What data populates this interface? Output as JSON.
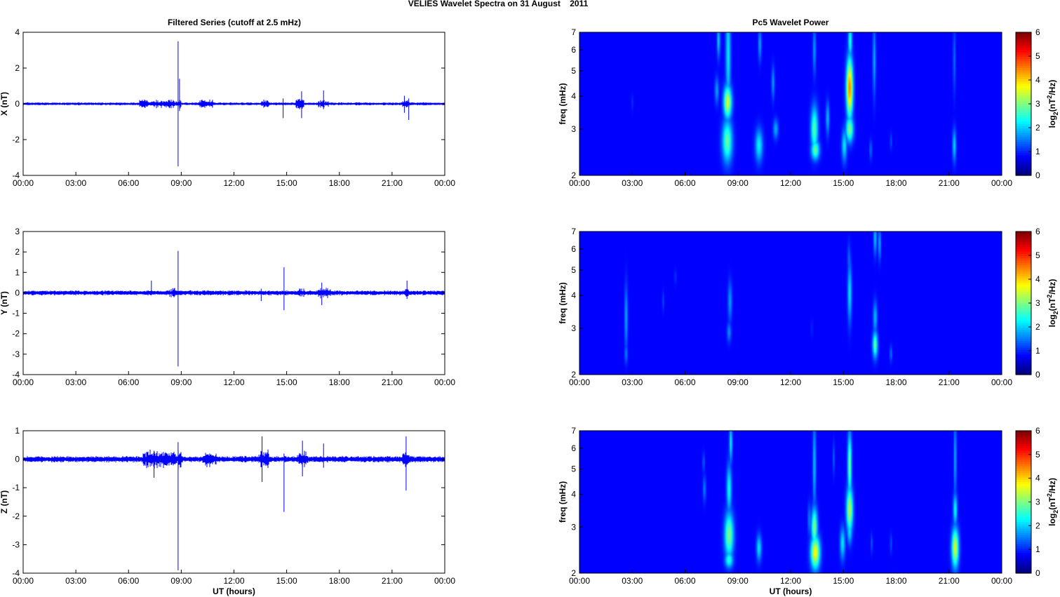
{
  "figure": {
    "title": "VELIES Wavelet Spectra on 31 August    2011",
    "left_title": "Filtered Series (cutoff at 2.5 mHz)",
    "right_title": "Pc5 Wavelet Power",
    "xlabel": "UT (hours)",
    "freq_label": "freq (mHz)",
    "colorbar_label": "log2(nT2/Hz)",
    "x_ticks": [
      "00:00",
      "03:00",
      "06:00",
      "09:00",
      "12:00",
      "15:00",
      "18:00",
      "21:00",
      "00:00"
    ]
  },
  "chart_data": [
    {
      "type": "line",
      "component": "X",
      "ylabel": "X (nT)",
      "xlabel": "",
      "xlim": [
        0,
        24
      ],
      "ylim": [
        -4,
        4
      ],
      "yticks": [
        4,
        2,
        0,
        -2,
        -4
      ],
      "noise_amplitude": 0.09,
      "series_color": "#0000ff",
      "spikes": [
        {
          "t": 8.82,
          "min": -3.5,
          "max": 3.5
        },
        {
          "t": 8.9,
          "min": -0.4,
          "max": 1.4
        },
        {
          "t": 15.85,
          "min": -0.8,
          "max": 0.7
        },
        {
          "t": 14.8,
          "min": -0.8,
          "max": 0.3
        },
        {
          "t": 17.1,
          "min": -0.3,
          "max": 0.75
        },
        {
          "t": 21.95,
          "min": -0.9,
          "max": 0.3
        },
        {
          "t": 21.7,
          "min": -0.5,
          "max": 0.45
        }
      ],
      "bursts": [
        {
          "t0": 6.6,
          "t1": 9.0,
          "amp": 0.35
        },
        {
          "t0": 10.0,
          "t1": 10.8,
          "amp": 0.3
        },
        {
          "t0": 13.5,
          "t1": 14.0,
          "amp": 0.3
        },
        {
          "t0": 15.5,
          "t1": 16.0,
          "amp": 0.4
        },
        {
          "t0": 16.8,
          "t1": 17.4,
          "amp": 0.3
        },
        {
          "t0": 21.6,
          "t1": 22.0,
          "amp": 0.3
        }
      ]
    },
    {
      "type": "line",
      "component": "Y",
      "ylabel": "Y (nT)",
      "xlabel": "",
      "xlim": [
        0,
        24
      ],
      "ylim": [
        -4,
        3
      ],
      "yticks": [
        3,
        2,
        1,
        0,
        -1,
        -2,
        -3,
        -4
      ],
      "noise_amplitude": 0.13,
      "series_color": "#0000ff",
      "spikes": [
        {
          "t": 8.82,
          "min": -3.6,
          "max": 2.05
        },
        {
          "t": 14.85,
          "min": -0.85,
          "max": 1.25
        },
        {
          "t": 7.3,
          "min": -0.1,
          "max": 0.6
        },
        {
          "t": 13.55,
          "min": -0.4,
          "max": 0.2
        },
        {
          "t": 17.0,
          "min": -0.6,
          "max": 0.5
        },
        {
          "t": 21.85,
          "min": -0.3,
          "max": 0.6
        }
      ],
      "bursts": [
        {
          "t0": 8.3,
          "t1": 9.0,
          "amp": 0.25
        },
        {
          "t0": 15.6,
          "t1": 16.0,
          "amp": 0.3
        },
        {
          "t0": 16.8,
          "t1": 17.5,
          "amp": 0.35
        },
        {
          "t0": 21.7,
          "t1": 22.0,
          "amp": 0.3
        }
      ]
    },
    {
      "type": "line",
      "component": "Z",
      "ylabel": "Z (nT)",
      "xlabel": "UT (hours)",
      "xlim": [
        0,
        24
      ],
      "ylim": [
        -4,
        1
      ],
      "yticks": [
        1,
        0,
        -1,
        -2,
        -3,
        -4
      ],
      "noise_amplitude": 0.12,
      "series_color": "#0000ff",
      "spikes": [
        {
          "t": 8.82,
          "min": -3.9,
          "max": 0.6
        },
        {
          "t": 14.85,
          "min": -1.85,
          "max": 0.2
        },
        {
          "t": 13.6,
          "min": -0.8,
          "max": 0.8
        },
        {
          "t": 15.9,
          "min": -0.6,
          "max": 0.65
        },
        {
          "t": 17.1,
          "min": -0.3,
          "max": 0.55
        },
        {
          "t": 21.8,
          "min": -1.1,
          "max": 0.8
        },
        {
          "t": 7.45,
          "min": -0.65,
          "max": 0.3
        }
      ],
      "bursts": [
        {
          "t0": 6.8,
          "t1": 9.0,
          "amp": 0.4
        },
        {
          "t0": 10.2,
          "t1": 11.0,
          "amp": 0.35
        },
        {
          "t0": 13.4,
          "t1": 14.0,
          "amp": 0.45
        },
        {
          "t0": 15.6,
          "t1": 16.2,
          "amp": 0.4
        },
        {
          "t0": 21.6,
          "t1": 22.0,
          "amp": 0.35
        }
      ]
    },
    {
      "type": "heatmap",
      "component": "X",
      "title": "Pc5 Wavelet Power",
      "xlim": [
        0,
        24
      ],
      "ylim": [
        2,
        7
      ],
      "ylog": true,
      "yticks": [
        7,
        6,
        5,
        4,
        3,
        2
      ],
      "colorbar_ticks": [
        6,
        5,
        4,
        3,
        2,
        1,
        0
      ],
      "clim": [
        0,
        6
      ],
      "colormap": "jet",
      "blobs": [
        {
          "t": 8.4,
          "f": 2.7,
          "dt": 0.2,
          "dlogf": 0.13,
          "v": 2.4
        },
        {
          "t": 8.42,
          "f": 3.8,
          "dt": 0.16,
          "dlogf": 0.1,
          "v": 3.2
        },
        {
          "t": 8.45,
          "f": 5.8,
          "dt": 0.1,
          "dlogf": 0.35,
          "v": 1.6
        },
        {
          "t": 7.9,
          "f": 6.5,
          "dt": 0.06,
          "dlogf": 0.1,
          "v": 1.5
        },
        {
          "t": 7.8,
          "f": 4.2,
          "dt": 0.08,
          "dlogf": 0.08,
          "v": 1.1
        },
        {
          "t": 10.2,
          "f": 2.6,
          "dt": 0.15,
          "dlogf": 0.1,
          "v": 1.7
        },
        {
          "t": 10.25,
          "f": 6.3,
          "dt": 0.06,
          "dlogf": 0.1,
          "v": 1.2
        },
        {
          "t": 11.0,
          "f": 4.5,
          "dt": 0.06,
          "dlogf": 0.1,
          "v": 1.1
        },
        {
          "t": 11.15,
          "f": 3.0,
          "dt": 0.1,
          "dlogf": 0.06,
          "v": 1.2
        },
        {
          "t": 13.35,
          "f": 3.0,
          "dt": 0.14,
          "dlogf": 0.14,
          "v": 2.3
        },
        {
          "t": 13.4,
          "f": 2.5,
          "dt": 0.16,
          "dlogf": 0.06,
          "v": 2.4
        },
        {
          "t": 13.35,
          "f": 6.0,
          "dt": 0.06,
          "dlogf": 0.15,
          "v": 1.1
        },
        {
          "t": 14.1,
          "f": 3.3,
          "dt": 0.07,
          "dlogf": 0.1,
          "v": 1.3
        },
        {
          "t": 15.05,
          "f": 2.6,
          "dt": 0.1,
          "dlogf": 0.1,
          "v": 1.6
        },
        {
          "t": 15.35,
          "f": 4.3,
          "dt": 0.13,
          "dlogf": 0.18,
          "v": 4.3
        },
        {
          "t": 15.35,
          "f": 3.0,
          "dt": 0.15,
          "dlogf": 0.08,
          "v": 2.6
        },
        {
          "t": 15.38,
          "f": 6.5,
          "dt": 0.08,
          "dlogf": 0.1,
          "v": 2.0
        },
        {
          "t": 16.75,
          "f": 5.5,
          "dt": 0.06,
          "dlogf": 0.22,
          "v": 1.2
        },
        {
          "t": 16.55,
          "f": 2.5,
          "dt": 0.05,
          "dlogf": 0.06,
          "v": 0.8
        },
        {
          "t": 17.7,
          "f": 2.7,
          "dt": 0.04,
          "dlogf": 0.05,
          "v": 0.6
        },
        {
          "t": 21.3,
          "f": 2.6,
          "dt": 0.07,
          "dlogf": 0.1,
          "v": 1.5
        },
        {
          "t": 21.3,
          "f": 5.5,
          "dt": 0.05,
          "dlogf": 0.2,
          "v": 0.8
        },
        {
          "t": 3.0,
          "f": 3.8,
          "dt": 0.04,
          "dlogf": 0.05,
          "v": 0.3
        }
      ]
    },
    {
      "type": "heatmap",
      "component": "Y",
      "title": "",
      "xlim": [
        0,
        24
      ],
      "ylim": [
        2,
        7
      ],
      "ylog": true,
      "yticks": [
        7,
        6,
        5,
        4,
        3,
        2
      ],
      "colorbar_ticks": [
        6,
        5,
        4,
        3,
        2,
        1,
        0
      ],
      "clim": [
        0,
        6
      ],
      "colormap": "jet",
      "blobs": [
        {
          "t": 2.65,
          "f": 3.3,
          "dt": 0.06,
          "dlogf": 0.2,
          "v": 1.2
        },
        {
          "t": 2.65,
          "f": 2.4,
          "dt": 0.06,
          "dlogf": 0.06,
          "v": 0.9
        },
        {
          "t": 4.75,
          "f": 3.8,
          "dt": 0.04,
          "dlogf": 0.06,
          "v": 0.5
        },
        {
          "t": 5.45,
          "f": 4.7,
          "dt": 0.04,
          "dlogf": 0.05,
          "v": 0.4
        },
        {
          "t": 8.55,
          "f": 3.8,
          "dt": 0.08,
          "dlogf": 0.12,
          "v": 1.1
        },
        {
          "t": 8.5,
          "f": 2.9,
          "dt": 0.08,
          "dlogf": 0.06,
          "v": 1.0
        },
        {
          "t": 15.35,
          "f": 4.1,
          "dt": 0.08,
          "dlogf": 0.18,
          "v": 1.6
        },
        {
          "t": 15.3,
          "f": 5.5,
          "dt": 0.05,
          "dlogf": 0.1,
          "v": 0.8
        },
        {
          "t": 16.8,
          "f": 2.6,
          "dt": 0.1,
          "dlogf": 0.08,
          "v": 2.4
        },
        {
          "t": 16.8,
          "f": 3.3,
          "dt": 0.08,
          "dlogf": 0.1,
          "v": 1.3
        },
        {
          "t": 16.8,
          "f": 6.6,
          "dt": 0.06,
          "dlogf": 0.1,
          "v": 1.4
        },
        {
          "t": 17.05,
          "f": 6.3,
          "dt": 0.05,
          "dlogf": 0.1,
          "v": 1.3
        },
        {
          "t": 17.7,
          "f": 2.4,
          "dt": 0.05,
          "dlogf": 0.05,
          "v": 0.8
        },
        {
          "t": 13.2,
          "f": 3.0,
          "dt": 0.04,
          "dlogf": 0.05,
          "v": 0.3
        }
      ]
    },
    {
      "type": "heatmap",
      "component": "Z",
      "title": "",
      "xlabel": "UT (hours)",
      "xlim": [
        0,
        24
      ],
      "ylim": [
        2,
        7
      ],
      "ylog": true,
      "yticks": [
        7,
        6,
        5,
        4,
        3,
        2
      ],
      "colorbar_ticks": [
        6,
        5,
        4,
        3,
        2,
        1,
        0
      ],
      "clim": [
        0,
        6
      ],
      "colormap": "jet",
      "blobs": [
        {
          "t": 8.5,
          "f": 2.8,
          "dt": 0.18,
          "dlogf": 0.14,
          "v": 2.6
        },
        {
          "t": 8.5,
          "f": 2.25,
          "dt": 0.16,
          "dlogf": 0.05,
          "v": 2.0
        },
        {
          "t": 8.5,
          "f": 4.2,
          "dt": 0.1,
          "dlogf": 0.15,
          "v": 1.8
        },
        {
          "t": 8.6,
          "f": 6.3,
          "dt": 0.06,
          "dlogf": 0.12,
          "v": 1.7
        },
        {
          "t": 7.1,
          "f": 4.2,
          "dt": 0.06,
          "dlogf": 0.08,
          "v": 0.9
        },
        {
          "t": 7.05,
          "f": 5.3,
          "dt": 0.04,
          "dlogf": 0.06,
          "v": 0.8
        },
        {
          "t": 10.2,
          "f": 2.5,
          "dt": 0.1,
          "dlogf": 0.08,
          "v": 1.6
        },
        {
          "t": 13.4,
          "f": 2.4,
          "dt": 0.18,
          "dlogf": 0.1,
          "v": 3.5
        },
        {
          "t": 13.35,
          "f": 3.0,
          "dt": 0.12,
          "dlogf": 0.12,
          "v": 2.6
        },
        {
          "t": 13.35,
          "f": 5.2,
          "dt": 0.06,
          "dlogf": 0.28,
          "v": 1.4
        },
        {
          "t": 13.05,
          "f": 3.2,
          "dt": 0.05,
          "dlogf": 0.1,
          "v": 1.0
        },
        {
          "t": 14.95,
          "f": 2.6,
          "dt": 0.1,
          "dlogf": 0.1,
          "v": 1.6
        },
        {
          "t": 15.35,
          "f": 3.5,
          "dt": 0.13,
          "dlogf": 0.14,
          "v": 3.0
        },
        {
          "t": 15.35,
          "f": 5.2,
          "dt": 0.08,
          "dlogf": 0.2,
          "v": 2.5
        },
        {
          "t": 15.35,
          "f": 2.9,
          "dt": 0.1,
          "dlogf": 0.08,
          "v": 1.6
        },
        {
          "t": 14.45,
          "f": 5.5,
          "dt": 0.04,
          "dlogf": 0.1,
          "v": 0.7
        },
        {
          "t": 21.35,
          "f": 2.5,
          "dt": 0.14,
          "dlogf": 0.12,
          "v": 3.2
        },
        {
          "t": 21.35,
          "f": 3.5,
          "dt": 0.08,
          "dlogf": 0.1,
          "v": 1.8
        },
        {
          "t": 21.35,
          "f": 5.5,
          "dt": 0.05,
          "dlogf": 0.25,
          "v": 1.3
        },
        {
          "t": 16.6,
          "f": 2.6,
          "dt": 0.04,
          "dlogf": 0.06,
          "v": 0.6
        },
        {
          "t": 17.7,
          "f": 2.6,
          "dt": 0.04,
          "dlogf": 0.06,
          "v": 0.6
        }
      ]
    }
  ]
}
